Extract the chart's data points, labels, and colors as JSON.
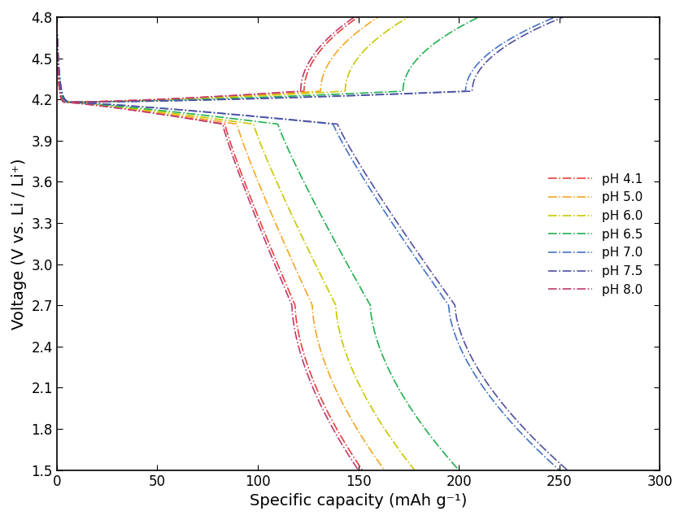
{
  "title": "",
  "xlabel": "Specific capacity (mAh g⁻¹)",
  "ylabel": "Voltage (V vs. Li / Li⁺)",
  "xlim": [
    0,
    300
  ],
  "ylim": [
    1.5,
    4.8
  ],
  "yticks": [
    1.5,
    1.8,
    2.1,
    2.4,
    2.7,
    3.0,
    3.3,
    3.6,
    3.9,
    4.2,
    4.5,
    4.8
  ],
  "xticks": [
    0,
    50,
    100,
    150,
    200,
    250,
    300
  ],
  "series": [
    {
      "label": "pH 4.1",
      "color": "#e8403a",
      "charge_cap": 150,
      "discharge_cap": 152
    },
    {
      "label": "pH 5.0",
      "color": "#f5a623",
      "charge_cap": 160,
      "discharge_cap": 163
    },
    {
      "label": "pH 6.0",
      "color": "#c8c800",
      "charge_cap": 175,
      "discharge_cap": 178
    },
    {
      "label": "pH 6.5",
      "color": "#22b050",
      "charge_cap": 210,
      "discharge_cap": 200
    },
    {
      "label": "pH 7.0",
      "color": "#4472c4",
      "charge_cap": 248,
      "discharge_cap": 250
    },
    {
      "label": "pH 7.5",
      "color": "#5050a0",
      "charge_cap": 252,
      "discharge_cap": 254
    },
    {
      "label": "pH 8.0",
      "color": "#c0396e",
      "charge_cap": 148,
      "discharge_cap": 150
    }
  ],
  "background_color": "#ffffff",
  "legend_fontsize": 11,
  "axis_fontsize": 14,
  "tick_fontsize": 12
}
